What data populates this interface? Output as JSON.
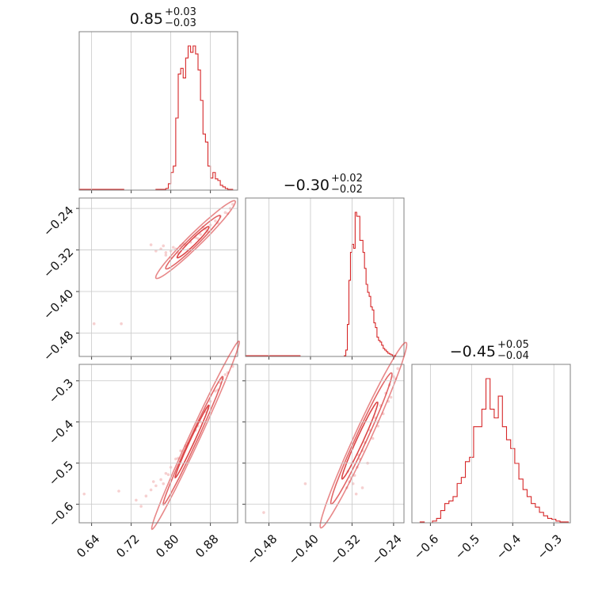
{
  "color": "#d62728",
  "chart_data": {
    "type": "corner",
    "grid": true,
    "parameters": [
      {
        "ticks": [
          0.64,
          0.72,
          0.8,
          0.88
        ],
        "tick_labels": [
          "0.64",
          "0.72",
          "0.80",
          "0.88"
        ],
        "range": [
          0.615,
          0.935
        ],
        "title": {
          "median": "0.85",
          "plus": "+0.03",
          "minus": "−0.03"
        },
        "hist_x": [
          0.615,
          0.68,
          0.705,
          0.74,
          0.77,
          0.785,
          0.79,
          0.795,
          0.8,
          0.805,
          0.81,
          0.815,
          0.82,
          0.825,
          0.83,
          0.835,
          0.84,
          0.845,
          0.85,
          0.855,
          0.86,
          0.865,
          0.87,
          0.875,
          0.88,
          0.885,
          0.89,
          0.895,
          0.9,
          0.905,
          0.91,
          0.915,
          0.92,
          0.925,
          0.935
        ],
        "hist_y": [
          1,
          1,
          0,
          0,
          1,
          1,
          2,
          8,
          22,
          30,
          90,
          145,
          152,
          140,
          165,
          180,
          172,
          180,
          170,
          150,
          112,
          70,
          60,
          30,
          15,
          22,
          14,
          12,
          6,
          4,
          2,
          1,
          1,
          0
        ]
      },
      {
        "ticks": [
          -0.48,
          -0.4,
          -0.32,
          -0.24
        ],
        "tick_labels": [
          "−0.48",
          "−0.40",
          "−0.32",
          "−0.24"
        ],
        "range": [
          -0.525,
          -0.22
        ],
        "title": {
          "median": "−0.30",
          "plus": "+0.02",
          "minus": "−0.02"
        },
        "hist_x": [
          -0.525,
          -0.42,
          -0.335,
          -0.332,
          -0.329,
          -0.326,
          -0.323,
          -0.32,
          -0.317,
          -0.314,
          -0.311,
          -0.308,
          -0.305,
          -0.302,
          -0.299,
          -0.296,
          -0.293,
          -0.29,
          -0.287,
          -0.284,
          -0.281,
          -0.278,
          -0.275,
          -0.272,
          -0.269,
          -0.266,
          -0.263,
          -0.26,
          -0.257,
          -0.254,
          -0.251,
          -0.248,
          -0.245,
          -0.242,
          -0.239,
          -0.236,
          -0.233,
          -0.23,
          -0.227,
          -0.224,
          -0.22
        ],
        "hist_y": [
          1,
          0,
          1,
          8,
          40,
          95,
          130,
          140,
          135,
          180,
          175,
          175,
          145,
          145,
          130,
          110,
          90,
          80,
          75,
          62,
          58,
          42,
          36,
          24,
          20,
          18,
          14,
          10,
          8,
          6,
          4,
          3,
          2,
          1,
          1,
          0,
          0,
          0,
          0,
          0
        ]
      },
      {
        "ticks": [
          -0.6,
          -0.5,
          -0.4,
          -0.3
        ],
        "tick_labels": [
          "−0.6",
          "−0.5",
          "−0.4",
          "−0.3"
        ],
        "range": [
          -0.645,
          -0.26
        ],
        "title": {
          "median": "−0.45",
          "plus": "+0.05",
          "minus": "−0.04"
        },
        "hist_x": [
          -0.645,
          -0.635,
          -0.625,
          -0.615,
          -0.605,
          -0.595,
          -0.585,
          -0.575,
          -0.565,
          -0.555,
          -0.545,
          -0.535,
          -0.525,
          -0.515,
          -0.505,
          -0.495,
          -0.485,
          -0.475,
          -0.465,
          -0.455,
          -0.445,
          -0.435,
          -0.425,
          -0.415,
          -0.405,
          -0.395,
          -0.385,
          -0.375,
          -0.365,
          -0.355,
          -0.345,
          -0.335,
          -0.325,
          -0.315,
          -0.305,
          -0.295,
          -0.285,
          -0.275,
          -0.265,
          -0.26
        ],
        "hist_y": [
          0,
          0,
          1,
          0,
          0,
          2,
          5,
          14,
          22,
          25,
          30,
          45,
          52,
          70,
          75,
          110,
          110,
          130,
          165,
          130,
          120,
          145,
          110,
          95,
          85,
          68,
          50,
          38,
          30,
          22,
          18,
          12,
          8,
          5,
          4,
          2,
          1,
          1,
          0
        ]
      }
    ],
    "pairs": [
      {
        "xi": 0,
        "yi": 1,
        "contours": [
          {
            "cx": 0.845,
            "cy": -0.305,
            "a": 0.032,
            "b": 0.0055,
            "slope": 0.93
          },
          {
            "cx": 0.845,
            "cy": -0.305,
            "a": 0.055,
            "b": 0.009,
            "slope": 0.93
          },
          {
            "cx": 0.85,
            "cy": -0.3,
            "a": 0.08,
            "b": 0.013,
            "slope": 0.93
          }
        ],
        "samples": [
          [
            0.79,
            -0.325
          ],
          [
            0.8,
            -0.322
          ],
          [
            0.81,
            -0.318
          ],
          [
            0.82,
            -0.312
          ],
          [
            0.83,
            -0.31
          ],
          [
            0.84,
            -0.305
          ],
          [
            0.85,
            -0.296
          ],
          [
            0.86,
            -0.29
          ],
          [
            0.87,
            -0.28
          ],
          [
            0.88,
            -0.272
          ],
          [
            0.89,
            -0.264
          ],
          [
            0.9,
            -0.255
          ],
          [
            0.91,
            -0.248
          ],
          [
            0.92,
            -0.24
          ],
          [
            0.925,
            -0.232
          ],
          [
            0.78,
            -0.318
          ],
          [
            0.77,
            -0.322
          ],
          [
            0.76,
            -0.31
          ],
          [
            0.79,
            -0.33
          ],
          [
            0.8,
            -0.335
          ],
          [
            0.815,
            -0.326
          ],
          [
            0.835,
            -0.32
          ],
          [
            0.855,
            -0.298
          ],
          [
            0.875,
            -0.285
          ],
          [
            0.895,
            -0.268
          ],
          [
            0.915,
            -0.25
          ],
          [
            0.825,
            -0.308
          ],
          [
            0.805,
            -0.315
          ],
          [
            0.785,
            -0.312
          ],
          [
            0.865,
            -0.276
          ],
          [
            0.645,
            -0.462
          ],
          [
            0.7,
            -0.462
          ]
        ]
      },
      {
        "xi": 0,
        "yi": 2,
        "contours": [
          {
            "cx": 0.843,
            "cy": -0.447,
            "a": 0.034,
            "b": 0.0045,
            "slope": 2.6
          },
          {
            "cx": 0.845,
            "cy": -0.445,
            "a": 0.06,
            "b": 0.0075,
            "slope": 2.6
          },
          {
            "cx": 0.85,
            "cy": -0.432,
            "a": 0.088,
            "b": 0.011,
            "slope": 2.6
          }
        ],
        "samples": [
          [
            0.77,
            -0.555
          ],
          [
            0.78,
            -0.54
          ],
          [
            0.79,
            -0.525
          ],
          [
            0.8,
            -0.51
          ],
          [
            0.81,
            -0.49
          ],
          [
            0.82,
            -0.47
          ],
          [
            0.83,
            -0.458
          ],
          [
            0.85,
            -0.42
          ],
          [
            0.86,
            -0.4
          ],
          [
            0.87,
            -0.375
          ],
          [
            0.88,
            -0.35
          ],
          [
            0.89,
            -0.325
          ],
          [
            0.9,
            -0.305
          ],
          [
            0.91,
            -0.285
          ],
          [
            0.925,
            -0.265
          ],
          [
            0.76,
            -0.565
          ],
          [
            0.75,
            -0.58
          ],
          [
            0.73,
            -0.59
          ],
          [
            0.905,
            -0.295
          ],
          [
            0.915,
            -0.28
          ],
          [
            0.795,
            -0.528
          ],
          [
            0.815,
            -0.488
          ],
          [
            0.835,
            -0.452
          ],
          [
            0.855,
            -0.41
          ],
          [
            0.875,
            -0.368
          ],
          [
            0.895,
            -0.322
          ],
          [
            0.765,
            -0.545
          ],
          [
            0.785,
            -0.55
          ],
          [
            0.74,
            -0.605
          ],
          [
            0.625,
            -0.575
          ],
          [
            0.695,
            -0.568
          ]
        ]
      },
      {
        "xi": 1,
        "yi": 2,
        "contours": [
          {
            "cx": -0.305,
            "cy": -0.445,
            "a": 0.034,
            "b": 0.0065,
            "slope": 2.75
          },
          {
            "cx": -0.302,
            "cy": -0.44,
            "a": 0.058,
            "b": 0.011,
            "slope": 2.75
          },
          {
            "cx": -0.298,
            "cy": -0.432,
            "a": 0.082,
            "b": 0.016,
            "slope": 2.75
          }
        ],
        "samples": [
          [
            -0.322,
            -0.535
          ],
          [
            -0.325,
            -0.545
          ],
          [
            -0.318,
            -0.55
          ],
          [
            -0.315,
            -0.53
          ],
          [
            -0.31,
            -0.51
          ],
          [
            -0.305,
            -0.49
          ],
          [
            -0.3,
            -0.47
          ],
          [
            -0.295,
            -0.45
          ],
          [
            -0.285,
            -0.42
          ],
          [
            -0.275,
            -0.39
          ],
          [
            -0.265,
            -0.36
          ],
          [
            -0.255,
            -0.33
          ],
          [
            -0.248,
            -0.31
          ],
          [
            -0.24,
            -0.29
          ],
          [
            -0.232,
            -0.27
          ],
          [
            -0.328,
            -0.52
          ],
          [
            -0.33,
            -0.56
          ],
          [
            -0.312,
            -0.575
          ],
          [
            -0.3,
            -0.56
          ],
          [
            -0.29,
            -0.5
          ],
          [
            -0.28,
            -0.44
          ],
          [
            -0.27,
            -0.41
          ],
          [
            -0.26,
            -0.38
          ],
          [
            -0.245,
            -0.34
          ],
          [
            -0.236,
            -0.295
          ],
          [
            -0.32,
            -0.5
          ],
          [
            -0.308,
            -0.48
          ],
          [
            -0.27,
            -0.4
          ],
          [
            -0.25,
            -0.35
          ],
          [
            -0.41,
            -0.55
          ],
          [
            -0.49,
            -0.62
          ]
        ]
      }
    ]
  }
}
